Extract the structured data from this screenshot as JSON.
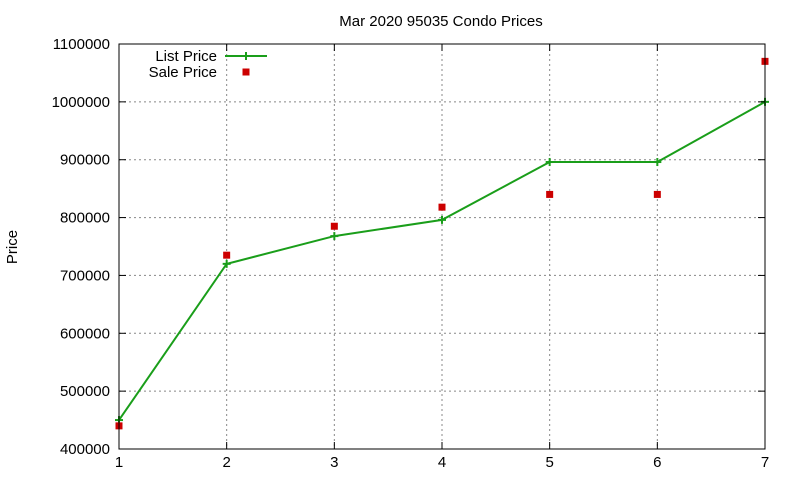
{
  "chart_data": {
    "type": "line",
    "title": "Mar 2020 95035 Condo Prices",
    "xlabel": "",
    "ylabel": "Price",
    "x": [
      1,
      2,
      3,
      4,
      5,
      6,
      7
    ],
    "xlim": [
      1,
      7
    ],
    "ylim": [
      400000,
      1100000
    ],
    "yticks": [
      400000,
      500000,
      600000,
      700000,
      800000,
      900000,
      1000000,
      1100000
    ],
    "xticks": [
      1,
      2,
      3,
      4,
      5,
      6,
      7
    ],
    "grid": true,
    "legend_position": "top-left",
    "series": [
      {
        "name": "List Price",
        "style": "line-with-plus-markers",
        "color": "#1a9e1a",
        "values": [
          450000,
          720000,
          768000,
          796000,
          896000,
          896000,
          1000000
        ]
      },
      {
        "name": "Sale Price",
        "style": "square-points",
        "color": "#cc0000",
        "values": [
          440000,
          735000,
          785000,
          818000,
          840000,
          840000,
          1070000
        ]
      }
    ]
  }
}
